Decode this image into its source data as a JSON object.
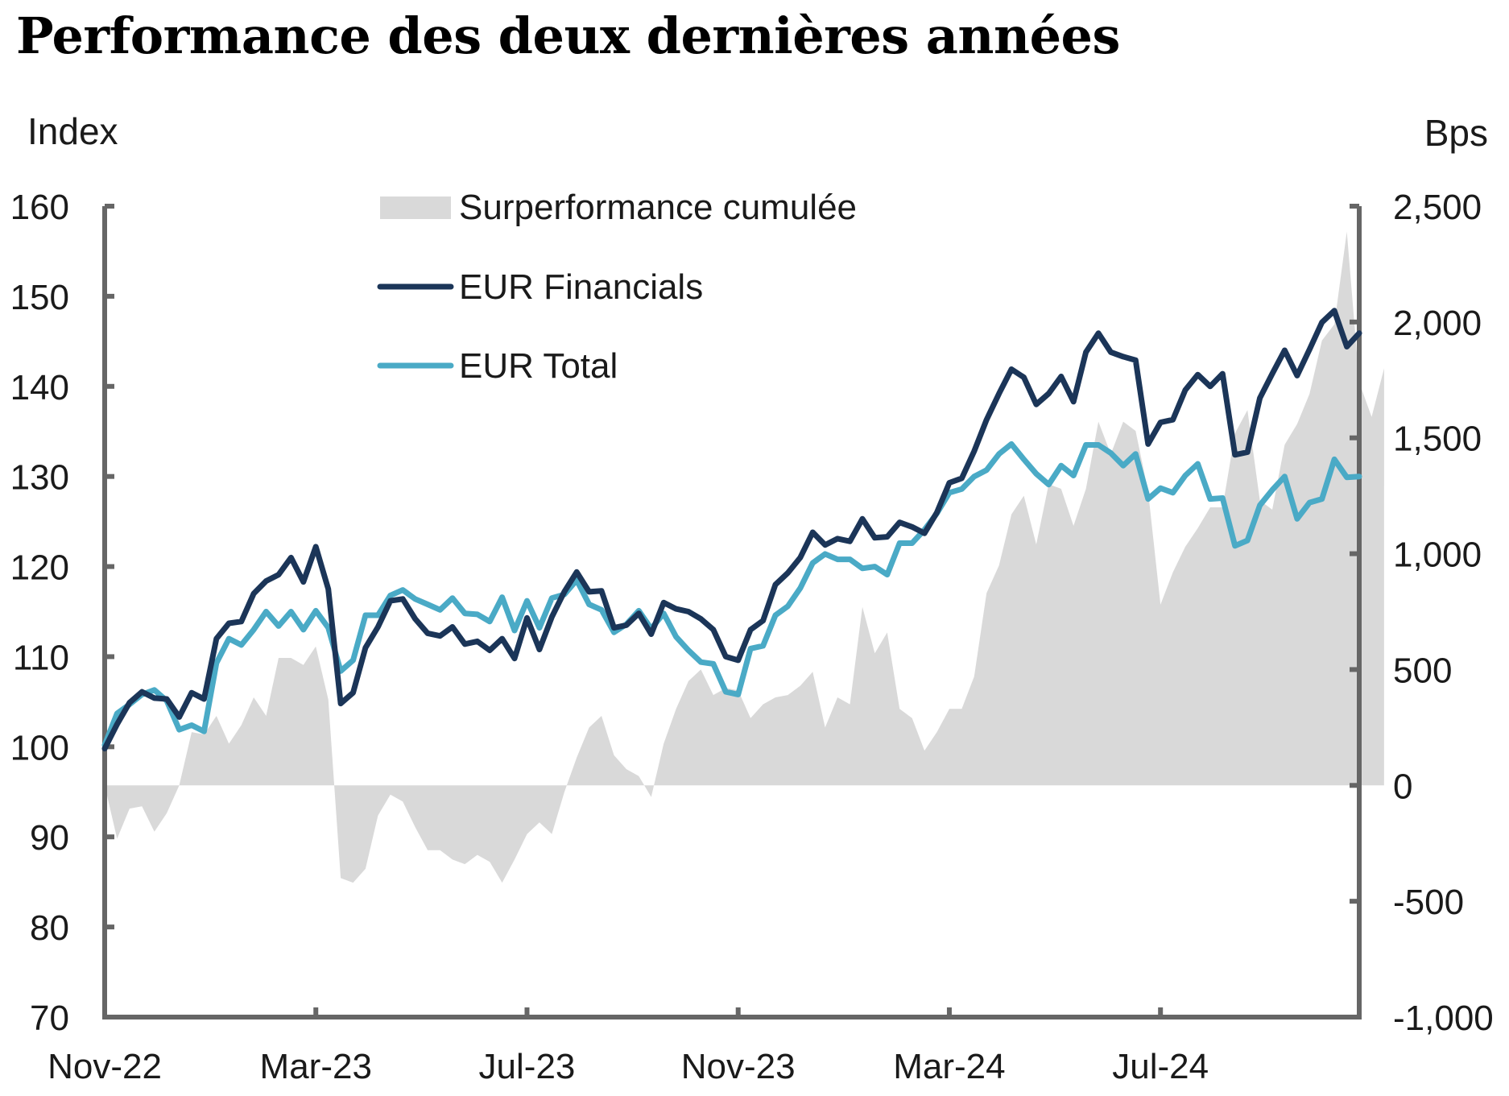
{
  "chart_data": {
    "type": "line",
    "title": "Performance des deux dernières années",
    "ylabel_left": "Index",
    "ylabel_right": "Bps",
    "ylim_left": [
      70,
      160
    ],
    "ylim_right": [
      -1000,
      2500
    ],
    "yticks_left": [
      70,
      80,
      90,
      100,
      110,
      120,
      130,
      140,
      150,
      160
    ],
    "yticks_right": [
      -1000,
      -500,
      0,
      500,
      1000,
      1500,
      2000,
      2500
    ],
    "ytick_labels_left": [
      "70",
      "80",
      "90",
      "100",
      "110",
      "120",
      "130",
      "140",
      "150",
      "160"
    ],
    "ytick_labels_right": [
      "-1,000",
      "-500",
      "0",
      "500",
      "1,000",
      "1,500",
      "2,000",
      "2,500"
    ],
    "xtick_labels": [
      "Nov-22",
      "Mar-23",
      "Jul-23",
      "Nov-23",
      "Mar-24",
      "Jul-24"
    ],
    "xtick_weeks": [
      0,
      17,
      34,
      51,
      68,
      85
    ],
    "x_unit": "weeks since start (weekly observations)",
    "grid": false,
    "legend_position": "top-left",
    "series": [
      {
        "name": "Surperformance cumulée",
        "type": "area",
        "axis": "right",
        "color": "#d9d9d9",
        "values": [
          0,
          -230,
          -100,
          -90,
          -200,
          -120,
          0,
          230,
          220,
          300,
          180,
          260,
          380,
          300,
          550,
          550,
          520,
          600,
          370,
          -400,
          -420,
          -360,
          -130,
          -40,
          -70,
          -180,
          -280,
          -280,
          -320,
          -340,
          -300,
          -330,
          -420,
          -320,
          -210,
          -160,
          -210,
          -30,
          120,
          250,
          300,
          130,
          70,
          40,
          -50,
          180,
          330,
          450,
          500,
          390,
          420,
          410,
          290,
          350,
          380,
          390,
          430,
          490,
          250,
          380,
          350,
          770,
          570,
          660,
          330,
          290,
          150,
          230,
          330,
          330,
          470,
          830,
          950,
          1170,
          1250,
          1040,
          1300,
          1280,
          1120,
          1280,
          1570,
          1430,
          1570,
          1530,
          1270,
          780,
          920,
          1030,
          1110,
          1200,
          1200,
          1520,
          1620,
          1230,
          1190,
          1470,
          1560,
          1690,
          1920,
          1990,
          2390,
          1740,
          1590,
          1800
        ]
      },
      {
        "name": "EUR Financials",
        "type": "line",
        "axis": "left",
        "color": "#1b3558",
        "values": [
          99.8,
          102.5,
          104.9,
          106.1,
          105.4,
          105.3,
          103.3,
          106.0,
          105.3,
          112.0,
          113.7,
          113.9,
          117.0,
          118.4,
          119.1,
          121.0,
          118.3,
          122.2,
          117.5,
          104.8,
          106.0,
          111.0,
          113.3,
          116.2,
          116.4,
          114.2,
          112.6,
          112.3,
          113.3,
          111.4,
          111.7,
          110.7,
          112.0,
          109.8,
          114.3,
          110.8,
          114.4,
          117.2,
          119.4,
          117.2,
          117.3,
          113.2,
          113.5,
          114.8,
          112.5,
          116.0,
          115.3,
          115.0,
          114.2,
          113.0,
          110.0,
          109.6,
          113.0,
          114.0,
          118.0,
          119.3,
          121.0,
          123.8,
          122.4,
          123.1,
          122.8,
          125.3,
          123.2,
          123.3,
          124.9,
          124.4,
          123.7,
          126.0,
          129.3,
          129.8,
          132.8,
          136.3,
          139.2,
          141.9,
          141.0,
          138.0,
          139.2,
          141.1,
          138.3,
          143.8,
          145.9,
          143.8,
          143.3,
          142.9,
          133.6,
          136.0,
          136.3,
          139.6,
          141.3,
          140.0,
          141.4,
          132.4,
          132.7,
          138.7,
          141.4,
          144.0,
          141.2,
          144.1,
          147.1,
          148.4,
          144.4,
          145.9
        ]
      },
      {
        "name": "EUR Total",
        "type": "line",
        "axis": "left",
        "color": "#4aaac6",
        "values": [
          100.2,
          103.7,
          104.7,
          105.8,
          106.3,
          105.1,
          101.9,
          102.4,
          101.7,
          109.3,
          112.0,
          111.3,
          113.0,
          115.0,
          113.4,
          115.0,
          113.0,
          115.1,
          113.2,
          108.4,
          109.6,
          114.6,
          114.6,
          116.8,
          117.4,
          116.4,
          115.8,
          115.2,
          116.5,
          114.8,
          114.7,
          113.9,
          116.6,
          112.9,
          116.2,
          113.2,
          116.5,
          116.9,
          118.5,
          115.8,
          115.2,
          112.7,
          113.6,
          115.1,
          113.1,
          114.8,
          112.2,
          110.7,
          109.4,
          109.2,
          106.1,
          105.8,
          110.9,
          111.2,
          114.6,
          115.6,
          117.6,
          120.4,
          121.4,
          120.8,
          120.8,
          119.8,
          120.0,
          119.1,
          122.6,
          122.6,
          124.1,
          125.9,
          128.2,
          128.6,
          130.0,
          130.7,
          132.5,
          133.6,
          131.9,
          130.3,
          129.1,
          131.2,
          130.1,
          133.5,
          133.5,
          132.6,
          131.2,
          132.5,
          127.5,
          128.7,
          128.2,
          130.1,
          131.4,
          127.5,
          127.6,
          122.3,
          122.9,
          126.8,
          128.5,
          130.0,
          125.3,
          127.1,
          127.5,
          131.9,
          129.9,
          130.0
        ]
      }
    ]
  }
}
